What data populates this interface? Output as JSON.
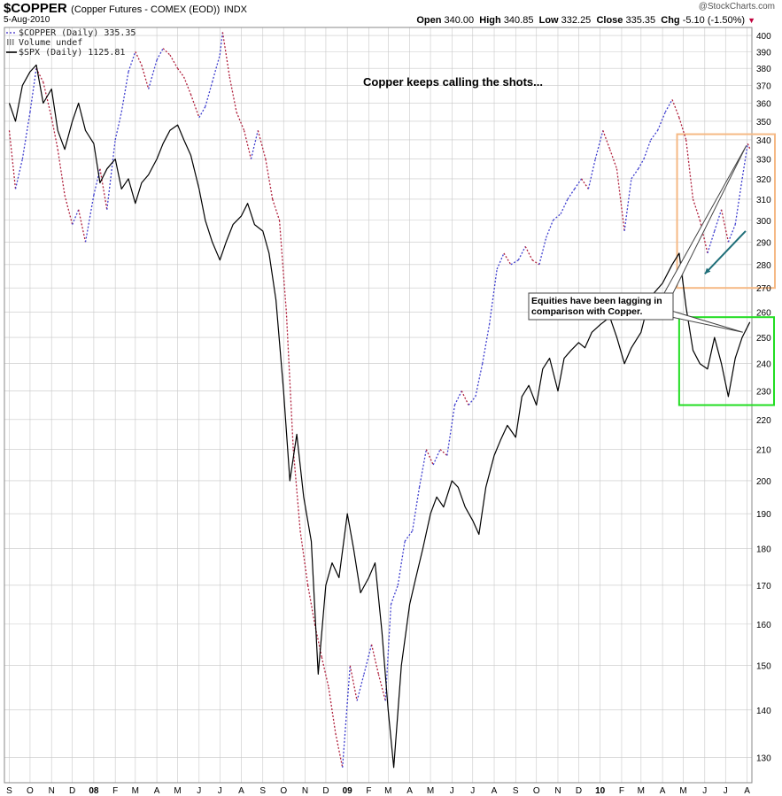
{
  "header": {
    "symbol": "$COPPER",
    "description": "(Copper Futures - COMEX (EOD))",
    "exchange": "INDX",
    "date": "5-Aug-2010",
    "brand": "@StockCharts.com",
    "open_label": "Open",
    "open": "340.00",
    "high_label": "High",
    "high": "340.85",
    "low_label": "Low",
    "low": "332.25",
    "close_label": "Close",
    "close": "335.35",
    "chg_label": "Chg",
    "chg": "-5.10 (-1.50%)",
    "chg_icon": "down-triangle-icon"
  },
  "legend": [
    {
      "label": "$COPPER (Daily) 335.35",
      "style": "dotted",
      "color": "#5a4bd1"
    },
    {
      "label": "Volume undef",
      "style": "bars",
      "color": "#888888"
    },
    {
      "label": "$SPX (Daily) 1125.81",
      "style": "solid",
      "color": "#000000"
    }
  ],
  "annotations": {
    "headline": "Copper keeps calling the shots...",
    "callout": [
      "Equities have been lagging in",
      "comparison with Copper."
    ]
  },
  "colors": {
    "copper_up": "#3f3fcf",
    "copper_down": "#b0203c",
    "spx": "#000000",
    "grid": "#c8c8c8",
    "orange_box": "#f5b985",
    "green_box": "#22dd22",
    "trend_arrow": "#1e6e78"
  },
  "chart_data": {
    "type": "line",
    "title": "$COPPER (Copper Futures - COMEX (EOD)) INDX",
    "y_axis_side": "right",
    "y_scale": "log",
    "ylim": [
      125,
      405
    ],
    "y_ticks": [
      130,
      140,
      150,
      160,
      170,
      180,
      190,
      200,
      210,
      220,
      230,
      240,
      250,
      260,
      270,
      280,
      290,
      300,
      310,
      320,
      330,
      340,
      350,
      360,
      370,
      380,
      390,
      400
    ],
    "x_tick_labels": [
      "S",
      "O",
      "N",
      "D",
      "08",
      "F",
      "M",
      "A",
      "M",
      "J",
      "J",
      "A",
      "S",
      "O",
      "N",
      "D",
      "09",
      "F",
      "M",
      "A",
      "M",
      "J",
      "J",
      "A",
      "S",
      "O",
      "N",
      "D",
      "10",
      "F",
      "M",
      "A",
      "M",
      "J",
      "J",
      "A"
    ],
    "x_range": [
      "2007-09",
      "2010-08-05"
    ],
    "grid": true,
    "legend_position": "top-left",
    "series": [
      {
        "name": "$COPPER (Daily)",
        "last": 335.35,
        "style": "dotted",
        "points": [
          [
            "2007-09-01",
            345
          ],
          [
            "2007-09-10",
            315
          ],
          [
            "2007-09-20",
            330
          ],
          [
            "2007-10-01",
            355
          ],
          [
            "2007-10-10",
            380
          ],
          [
            "2007-10-20",
            372
          ],
          [
            "2007-11-01",
            352
          ],
          [
            "2007-11-10",
            335
          ],
          [
            "2007-11-20",
            312
          ],
          [
            "2007-12-01",
            298
          ],
          [
            "2007-12-10",
            305
          ],
          [
            "2007-12-20",
            290
          ],
          [
            "2008-01-01",
            312
          ],
          [
            "2008-01-10",
            325
          ],
          [
            "2008-01-20",
            305
          ],
          [
            "2008-02-01",
            340
          ],
          [
            "2008-02-10",
            355
          ],
          [
            "2008-02-20",
            378
          ],
          [
            "2008-03-01",
            390
          ],
          [
            "2008-03-10",
            382
          ],
          [
            "2008-03-20",
            368
          ],
          [
            "2008-04-01",
            385
          ],
          [
            "2008-04-10",
            392
          ],
          [
            "2008-04-20",
            388
          ],
          [
            "2008-05-01",
            380
          ],
          [
            "2008-05-10",
            375
          ],
          [
            "2008-05-20",
            365
          ],
          [
            "2008-06-01",
            352
          ],
          [
            "2008-06-10",
            358
          ],
          [
            "2008-06-20",
            372
          ],
          [
            "2008-07-01",
            388
          ],
          [
            "2008-07-05",
            402
          ],
          [
            "2008-07-15",
            375
          ],
          [
            "2008-07-25",
            355
          ],
          [
            "2008-08-05",
            345
          ],
          [
            "2008-08-15",
            330
          ],
          [
            "2008-08-25",
            345
          ],
          [
            "2008-09-05",
            330
          ],
          [
            "2008-09-15",
            310
          ],
          [
            "2008-09-25",
            300
          ],
          [
            "2008-10-05",
            260
          ],
          [
            "2008-10-15",
            210
          ],
          [
            "2008-10-25",
            185
          ],
          [
            "2008-11-05",
            170
          ],
          [
            "2008-11-15",
            160
          ],
          [
            "2008-11-25",
            152
          ],
          [
            "2008-12-05",
            145
          ],
          [
            "2008-12-15",
            135
          ],
          [
            "2008-12-25",
            128
          ],
          [
            "2009-01-05",
            150
          ],
          [
            "2009-01-15",
            142
          ],
          [
            "2009-01-25",
            148
          ],
          [
            "2009-02-05",
            155
          ],
          [
            "2009-02-15",
            148
          ],
          [
            "2009-02-25",
            142
          ],
          [
            "2009-03-05",
            165
          ],
          [
            "2009-03-15",
            170
          ],
          [
            "2009-03-25",
            182
          ],
          [
            "2009-04-05",
            185
          ],
          [
            "2009-04-15",
            198
          ],
          [
            "2009-04-25",
            210
          ],
          [
            "2009-05-05",
            205
          ],
          [
            "2009-05-15",
            210
          ],
          [
            "2009-05-25",
            208
          ],
          [
            "2009-06-05",
            225
          ],
          [
            "2009-06-15",
            230
          ],
          [
            "2009-06-25",
            225
          ],
          [
            "2009-07-05",
            228
          ],
          [
            "2009-07-15",
            240
          ],
          [
            "2009-07-25",
            255
          ],
          [
            "2009-08-05",
            278
          ],
          [
            "2009-08-15",
            285
          ],
          [
            "2009-08-25",
            280
          ],
          [
            "2009-09-05",
            282
          ],
          [
            "2009-09-15",
            288
          ],
          [
            "2009-09-25",
            282
          ],
          [
            "2009-10-05",
            280
          ],
          [
            "2009-10-15",
            292
          ],
          [
            "2009-10-25",
            300
          ],
          [
            "2009-11-05",
            303
          ],
          [
            "2009-11-15",
            310
          ],
          [
            "2009-11-25",
            315
          ],
          [
            "2009-12-05",
            320
          ],
          [
            "2009-12-15",
            315
          ],
          [
            "2009-12-25",
            330
          ],
          [
            "2010-01-05",
            345
          ],
          [
            "2010-01-15",
            335
          ],
          [
            "2010-01-25",
            325
          ],
          [
            "2010-02-05",
            295
          ],
          [
            "2010-02-15",
            320
          ],
          [
            "2010-02-25",
            325
          ],
          [
            "2010-03-05",
            330
          ],
          [
            "2010-03-15",
            340
          ],
          [
            "2010-03-25",
            345
          ],
          [
            "2010-04-05",
            355
          ],
          [
            "2010-04-15",
            362
          ],
          [
            "2010-04-25",
            352
          ],
          [
            "2010-05-05",
            340
          ],
          [
            "2010-05-15",
            310
          ],
          [
            "2010-05-25",
            300
          ],
          [
            "2010-06-05",
            285
          ],
          [
            "2010-06-15",
            295
          ],
          [
            "2010-06-25",
            305
          ],
          [
            "2010-07-05",
            290
          ],
          [
            "2010-07-15",
            298
          ],
          [
            "2010-07-25",
            320
          ],
          [
            "2010-08-02",
            338
          ],
          [
            "2010-08-05",
            335.35
          ]
        ]
      },
      {
        "name": "$SPX (Daily)",
        "last": 1125.81,
        "style": "solid",
        "points": [
          [
            "2007-09-01",
            360
          ],
          [
            "2007-09-10",
            350
          ],
          [
            "2007-09-20",
            370
          ],
          [
            "2007-10-01",
            378
          ],
          [
            "2007-10-10",
            382
          ],
          [
            "2007-10-20",
            360
          ],
          [
            "2007-11-01",
            368
          ],
          [
            "2007-11-10",
            345
          ],
          [
            "2007-11-20",
            335
          ],
          [
            "2007-12-01",
            350
          ],
          [
            "2007-12-10",
            360
          ],
          [
            "2007-12-20",
            345
          ],
          [
            "2008-01-01",
            338
          ],
          [
            "2008-01-10",
            318
          ],
          [
            "2008-01-20",
            325
          ],
          [
            "2008-02-01",
            330
          ],
          [
            "2008-02-10",
            315
          ],
          [
            "2008-02-20",
            320
          ],
          [
            "2008-03-01",
            308
          ],
          [
            "2008-03-10",
            318
          ],
          [
            "2008-03-20",
            322
          ],
          [
            "2008-04-01",
            330
          ],
          [
            "2008-04-10",
            338
          ],
          [
            "2008-04-20",
            345
          ],
          [
            "2008-05-01",
            348
          ],
          [
            "2008-05-10",
            340
          ],
          [
            "2008-05-20",
            332
          ],
          [
            "2008-06-01",
            315
          ],
          [
            "2008-06-10",
            300
          ],
          [
            "2008-06-20",
            290
          ],
          [
            "2008-07-01",
            282
          ],
          [
            "2008-07-10",
            290
          ],
          [
            "2008-07-20",
            298
          ],
          [
            "2008-08-01",
            302
          ],
          [
            "2008-08-10",
            308
          ],
          [
            "2008-08-20",
            298
          ],
          [
            "2008-09-01",
            295
          ],
          [
            "2008-09-10",
            285
          ],
          [
            "2008-09-20",
            265
          ],
          [
            "2008-10-01",
            230
          ],
          [
            "2008-10-10",
            200
          ],
          [
            "2008-10-20",
            215
          ],
          [
            "2008-10-30",
            195
          ],
          [
            "2008-11-10",
            182
          ],
          [
            "2008-11-20",
            148
          ],
          [
            "2008-12-01",
            170
          ],
          [
            "2008-12-10",
            176
          ],
          [
            "2008-12-20",
            172
          ],
          [
            "2009-01-01",
            190
          ],
          [
            "2009-01-10",
            180
          ],
          [
            "2009-01-20",
            168
          ],
          [
            "2009-02-01",
            172
          ],
          [
            "2009-02-10",
            176
          ],
          [
            "2009-02-20",
            158
          ],
          [
            "2009-03-01",
            140
          ],
          [
            "2009-03-09",
            128
          ],
          [
            "2009-03-20",
            150
          ],
          [
            "2009-04-01",
            165
          ],
          [
            "2009-04-10",
            172
          ],
          [
            "2009-04-20",
            180
          ],
          [
            "2009-05-01",
            190
          ],
          [
            "2009-05-10",
            195
          ],
          [
            "2009-05-20",
            192
          ],
          [
            "2009-06-01",
            200
          ],
          [
            "2009-06-10",
            198
          ],
          [
            "2009-06-20",
            192
          ],
          [
            "2009-07-01",
            188
          ],
          [
            "2009-07-10",
            184
          ],
          [
            "2009-07-20",
            198
          ],
          [
            "2009-08-01",
            208
          ],
          [
            "2009-08-10",
            213
          ],
          [
            "2009-08-20",
            218
          ],
          [
            "2009-09-01",
            214
          ],
          [
            "2009-09-10",
            228
          ],
          [
            "2009-09-20",
            232
          ],
          [
            "2009-10-01",
            225
          ],
          [
            "2009-10-10",
            238
          ],
          [
            "2009-10-20",
            242
          ],
          [
            "2009-11-01",
            230
          ],
          [
            "2009-11-10",
            242
          ],
          [
            "2009-11-20",
            245
          ],
          [
            "2009-12-01",
            248
          ],
          [
            "2009-12-10",
            246
          ],
          [
            "2009-12-20",
            252
          ],
          [
            "2010-01-01",
            255
          ],
          [
            "2010-01-15",
            258
          ],
          [
            "2010-01-25",
            250
          ],
          [
            "2010-02-05",
            240
          ],
          [
            "2010-02-15",
            246
          ],
          [
            "2010-03-01",
            252
          ],
          [
            "2010-03-10",
            262
          ],
          [
            "2010-03-20",
            268
          ],
          [
            "2010-04-01",
            272
          ],
          [
            "2010-04-15",
            280
          ],
          [
            "2010-04-25",
            285
          ],
          [
            "2010-05-05",
            262
          ],
          [
            "2010-05-15",
            245
          ],
          [
            "2010-05-25",
            240
          ],
          [
            "2010-06-05",
            238
          ],
          [
            "2010-06-15",
            250
          ],
          [
            "2010-06-25",
            240
          ],
          [
            "2010-07-05",
            228
          ],
          [
            "2010-07-15",
            242
          ],
          [
            "2010-07-25",
            250
          ],
          [
            "2010-08-05",
            256
          ]
        ]
      }
    ]
  }
}
